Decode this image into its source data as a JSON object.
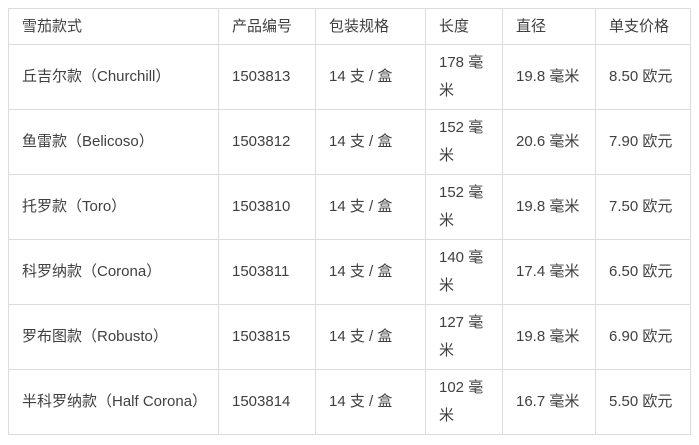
{
  "table": {
    "columns": [
      "雪茄款式",
      "产品编号",
      "包装规格",
      "长度",
      "直径",
      "单支价格"
    ],
    "rows": [
      {
        "style": "丘吉尔款（Churchill）",
        "product_no": "1503813",
        "packaging": "14 支 / 盒",
        "length": "178 毫米",
        "diameter": "19.8 毫米",
        "price": "8.50 欧元"
      },
      {
        "style": "鱼雷款（Belicoso）",
        "product_no": "1503812",
        "packaging": "14 支 / 盒",
        "length": "152 毫米",
        "diameter": "20.6 毫米",
        "price": "7.90 欧元"
      },
      {
        "style": "托罗款（Toro）",
        "product_no": "1503810",
        "packaging": "14 支 / 盒",
        "length": "152 毫米",
        "diameter": "19.8 毫米",
        "price": "7.50 欧元"
      },
      {
        "style": "科罗纳款（Corona）",
        "product_no": "1503811",
        "packaging": "14 支 / 盒",
        "length": "140 毫米",
        "diameter": "17.4 毫米",
        "price": "6.50 欧元"
      },
      {
        "style": "罗布图款（Robusto）",
        "product_no": "1503815",
        "packaging": "14 支 / 盒",
        "length": "127 毫米",
        "diameter": "19.8 毫米",
        "price": "6.90 欧元"
      },
      {
        "style": "半科罗纳款（Half Corona）",
        "product_no": "1503814",
        "packaging": "14 支 / 盒",
        "length": "102 毫米",
        "diameter": "16.7 毫米",
        "price": "5.50 欧元"
      }
    ]
  },
  "colors": {
    "border": "#dcdcdc",
    "text": "#404040",
    "background": "#ffffff"
  }
}
